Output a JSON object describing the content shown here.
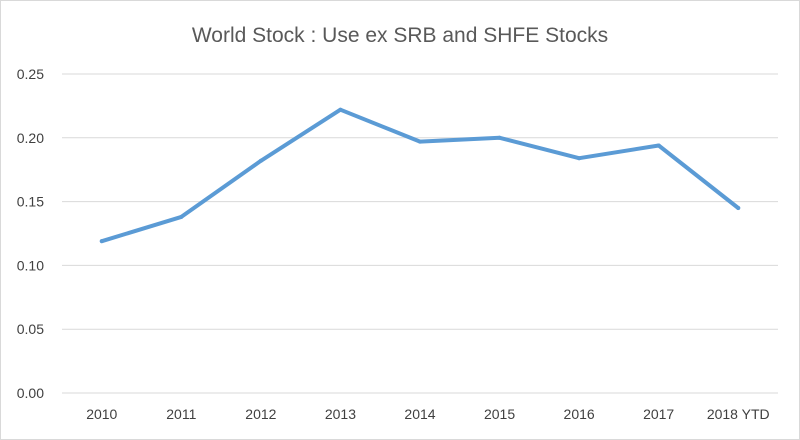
{
  "chart_data": {
    "type": "line",
    "title": "World Stock : Use ex SRB and SHFE Stocks",
    "categories": [
      "2010",
      "2011",
      "2012",
      "2013",
      "2014",
      "2015",
      "2016",
      "2017",
      "2018 YTD"
    ],
    "series": [
      {
        "values": [
          0.119,
          0.138,
          0.182,
          0.222,
          0.197,
          0.2,
          0.184,
          0.194,
          0.145
        ],
        "color": "#5B9BD5"
      }
    ],
    "y_ticks": [
      "0.00",
      "0.05",
      "0.10",
      "0.15",
      "0.20",
      "0.25"
    ],
    "ylim": [
      0,
      0.25
    ],
    "grid": true,
    "legend": "none"
  }
}
